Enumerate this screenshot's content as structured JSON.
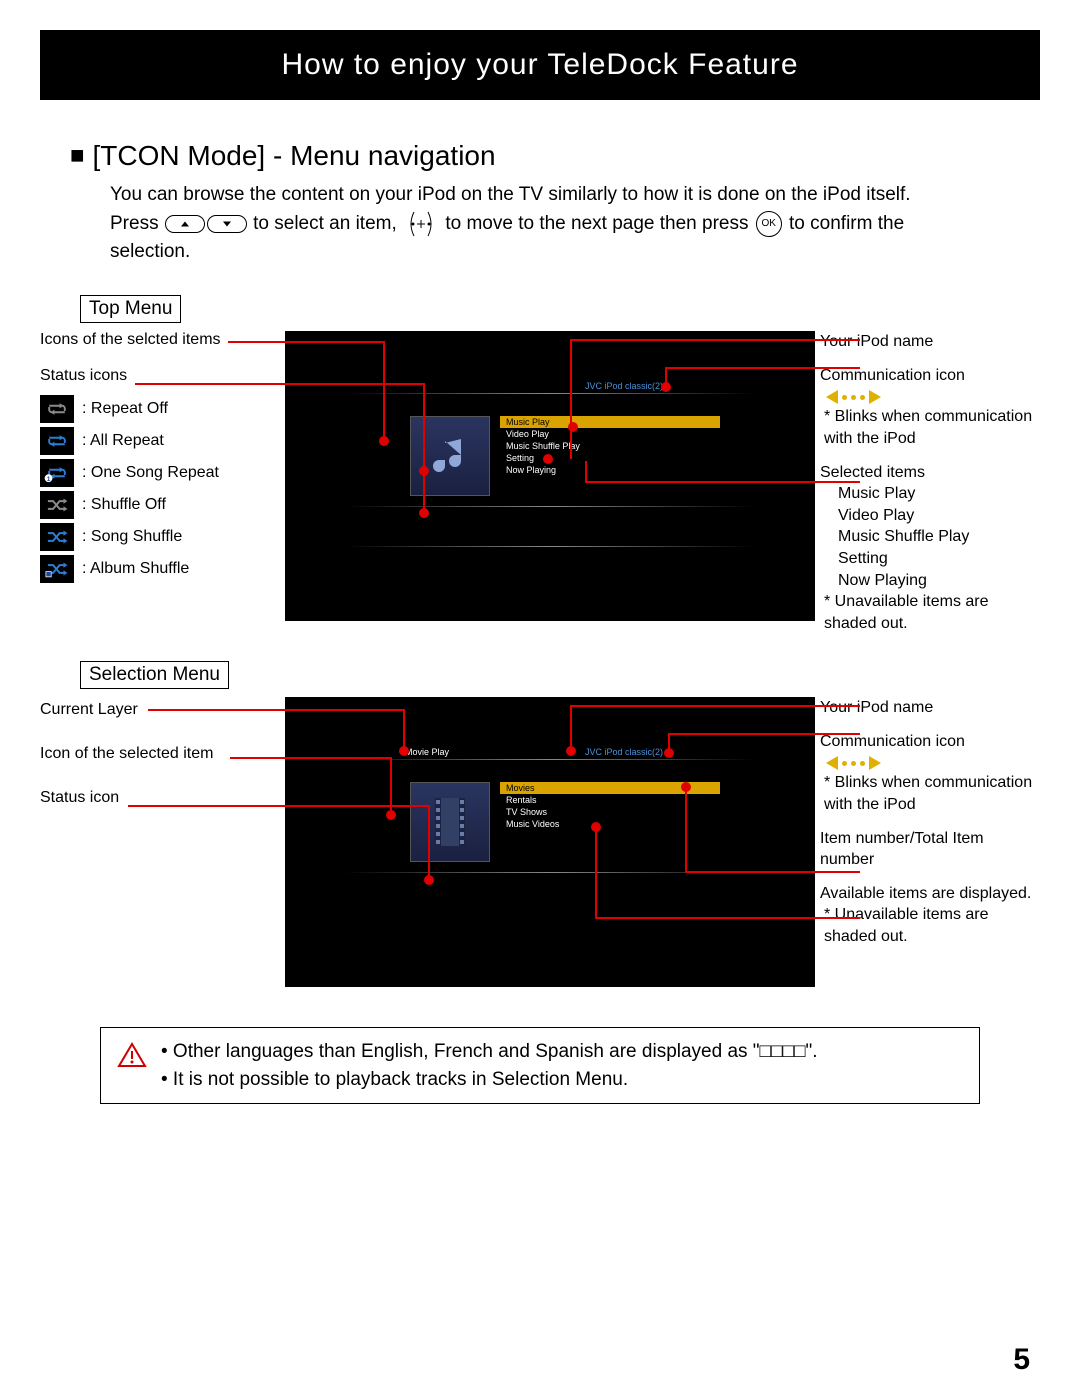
{
  "title": "How to enjoy your TeleDock Feature",
  "section_heading": "[TCON Mode] - Menu navigation",
  "intro_line1": "You can browse the content on your iPod on the TV similarly to how it is done on the iPod itself.",
  "intro_press": "Press",
  "intro_select": "to select an item,",
  "intro_move": "to move to the next page then press",
  "intro_confirm": "to confirm the",
  "intro_selection": "selection.",
  "ok_label": "OK",
  "top_menu": {
    "label": "Top Menu",
    "left": {
      "icons_selected": "Icons of the selcted items",
      "status_icons": "Status icons",
      "legend": [
        {
          "name": "repeat-off-icon",
          "label": ": Repeat Off",
          "color": "#8a8a8a",
          "type": "repeat"
        },
        {
          "name": "all-repeat-icon",
          "label": ": All Repeat",
          "color": "#2a7fd4",
          "type": "repeat"
        },
        {
          "name": "one-song-repeat-icon",
          "label": ": One Song Repeat",
          "color": "#2a7fd4",
          "type": "repeat1"
        },
        {
          "name": "shuffle-off-icon",
          "label": ": Shuffle Off",
          "color": "#8a8a8a",
          "type": "shuffle"
        },
        {
          "name": "song-shuffle-icon",
          "label": ": Song Shuffle",
          "color": "#2a7fd4",
          "type": "shuffle"
        },
        {
          "name": "album-shuffle-icon",
          "label": ": Album Shuffle",
          "color": "#2a7fd4",
          "type": "shuffleA"
        }
      ]
    },
    "right": {
      "ipod_name": "Your iPod name",
      "comm_icon": "Communication icon",
      "comm_color": "#e0b000",
      "comm_note": "Blinks when communication with the iPod",
      "selected_items_label": "Selected items",
      "selected_items": [
        "Music Play",
        "Video Play",
        "Music Shuffle Play",
        "Setting",
        "Now Playing"
      ],
      "unavail_note": "Unavailable items are shaded out."
    },
    "screen": {
      "device_name": "JVC iPod classic(2)",
      "highlight_color": "#d9a400",
      "items": [
        "Music Play",
        "Video Play",
        "Music Shuffle Play",
        "Setting",
        "Now Playing"
      ],
      "thumb_type": "music-note"
    }
  },
  "selection_menu": {
    "label": "Selection Menu",
    "left": {
      "current_layer": "Current Layer",
      "icon_selected": "Icon of the selected item",
      "status_icon": "Status icon"
    },
    "right": {
      "ipod_name": "Your iPod name",
      "comm_icon": "Communication icon",
      "comm_color": "#e0b000",
      "comm_note": "Blinks when communication with the iPod",
      "item_number": "Item number/Total Item number",
      "available": "Available items are displayed.",
      "unavail_note": "Unavailable items are shaded out."
    },
    "screen": {
      "layer_label": "Movie Play",
      "device_name": "JVC iPod classic(2)",
      "highlight_color": "#d9a400",
      "items": [
        "Movies",
        "Rentals",
        "TV Shows",
        "Music Videos"
      ],
      "thumb_type": "film"
    }
  },
  "warning": {
    "bullets": [
      "Other languages than English, French and Spanish are displayed as \"□□□□\".",
      "It is not possible to playback tracks in Selection Menu."
    ]
  },
  "page_number": "5",
  "colors": {
    "callout_red": "#e00000",
    "highlight_yellow": "#d9a400",
    "comm_arrow": "#e0b000"
  }
}
